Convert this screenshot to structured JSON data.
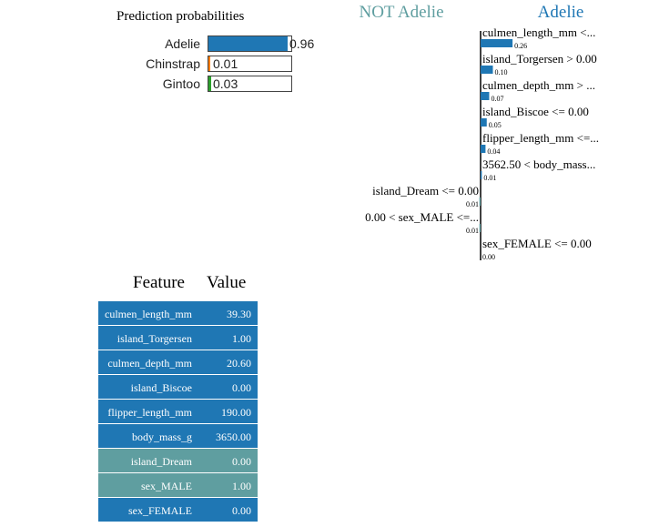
{
  "prediction_probabilities": {
    "title": "Prediction probabilities",
    "items": [
      {
        "label": "Adelie",
        "value": 0.96,
        "display": "0.96",
        "color": "#1f77b4"
      },
      {
        "label": "Chinstrap",
        "value": 0.01,
        "display": "0.01",
        "color": "#ff7f0e"
      },
      {
        "label": "Gintoo",
        "value": 0.03,
        "display": "0.03",
        "color": "#2ca02c"
      }
    ]
  },
  "chart_data": {
    "type": "bar",
    "orientation": "horizontal",
    "negative_class_label": "NOT Adelie",
    "positive_class_label": "Adelie",
    "negative_color": "#5f9ea0",
    "positive_color": "#1f77b4",
    "features": [
      {
        "label": "culmen_length_mm <...",
        "value": 0.26,
        "display": "0.26"
      },
      {
        "label": "island_Torgersen > 0.00",
        "value": 0.1,
        "display": "0.10"
      },
      {
        "label": "culmen_depth_mm > ...",
        "value": 0.07,
        "display": "0.07"
      },
      {
        "label": "island_Biscoe <= 0.00",
        "value": 0.05,
        "display": "0.05"
      },
      {
        "label": "flipper_length_mm <=...",
        "value": 0.04,
        "display": "0.04"
      },
      {
        "label": "3562.50 < body_mass...",
        "value": 0.01,
        "display": "0.01"
      },
      {
        "label": "island_Dream <= 0.00",
        "value": -0.01,
        "display": "0.01"
      },
      {
        "label": "0.00 < sex_MALE <=...",
        "value": -0.01,
        "display": "0.01"
      },
      {
        "label": "sex_FEMALE <= 0.00",
        "value": 0.0,
        "display": "0.00"
      }
    ]
  },
  "feature_table": {
    "headers": {
      "feature": "Feature",
      "value": "Value"
    },
    "rows": [
      {
        "feature": "culmen_length_mm",
        "value": "39.30",
        "color": "#1f77b4"
      },
      {
        "feature": "island_Torgersen",
        "value": "1.00",
        "color": "#1f77b4"
      },
      {
        "feature": "culmen_depth_mm",
        "value": "20.60",
        "color": "#1f77b4"
      },
      {
        "feature": "island_Biscoe",
        "value": "0.00",
        "color": "#1f77b4"
      },
      {
        "feature": "flipper_length_mm",
        "value": "190.00",
        "color": "#1f77b4"
      },
      {
        "feature": "body_mass_g",
        "value": "3650.00",
        "color": "#1f77b4"
      },
      {
        "feature": "island_Dream",
        "value": "0.00",
        "color": "#5f9ea0"
      },
      {
        "feature": "sex_MALE",
        "value": "1.00",
        "color": "#5f9ea0"
      },
      {
        "feature": "sex_FEMALE",
        "value": "0.00",
        "color": "#1f77b4"
      }
    ]
  }
}
